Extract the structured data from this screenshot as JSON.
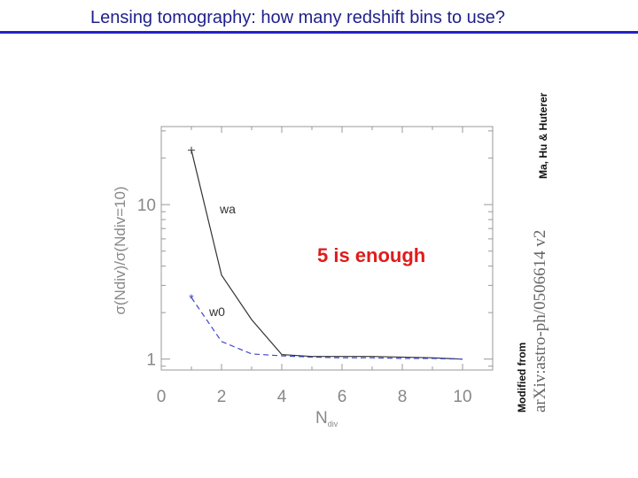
{
  "slide": {
    "title": "Lensing tomography: how many redshift bins to use?",
    "credit": "Ma, Hu & Huterer",
    "modified_label": "Modified from",
    "source": "arXiv:astro-ph/0506614 v2",
    "colors": {
      "title": "#1f1f8c",
      "rule": "#2222c8",
      "highlight": "#e01b1b"
    }
  },
  "chart_data": {
    "type": "line",
    "xlabel_main": "N",
    "xlabel_sub": "div",
    "ylabel": "σ(Ndiv)/σ(Ndiv=10)",
    "xlim": [
      0,
      11
    ],
    "ylim_log": [
      0.85,
      32
    ],
    "y_scale": "log",
    "x_ticks": [
      0,
      2,
      4,
      6,
      8,
      10
    ],
    "x_tick_labels": [
      "0",
      "2",
      "4",
      "6",
      "8",
      "10"
    ],
    "y_ticks": [
      1,
      10
    ],
    "y_tick_labels": [
      "1",
      "10"
    ],
    "annotation": "5 is enough",
    "series": [
      {
        "name": "wa",
        "color": "#333333",
        "dash": "solid",
        "marker": "+",
        "x": [
          1,
          2,
          3,
          4,
          5,
          6,
          7,
          8,
          9,
          10
        ],
        "y": [
          22.5,
          3.5,
          1.8,
          1.07,
          1.04,
          1.04,
          1.04,
          1.03,
          1.02,
          1.0
        ]
      },
      {
        "name": "w0",
        "color": "#3b46c8",
        "dash": "dashed",
        "marker": "*",
        "x": [
          1,
          2,
          3,
          4,
          5,
          6,
          7,
          8,
          9,
          10
        ],
        "y": [
          2.5,
          1.3,
          1.08,
          1.05,
          1.03,
          1.02,
          1.02,
          1.01,
          1.01,
          1.0
        ]
      }
    ]
  }
}
